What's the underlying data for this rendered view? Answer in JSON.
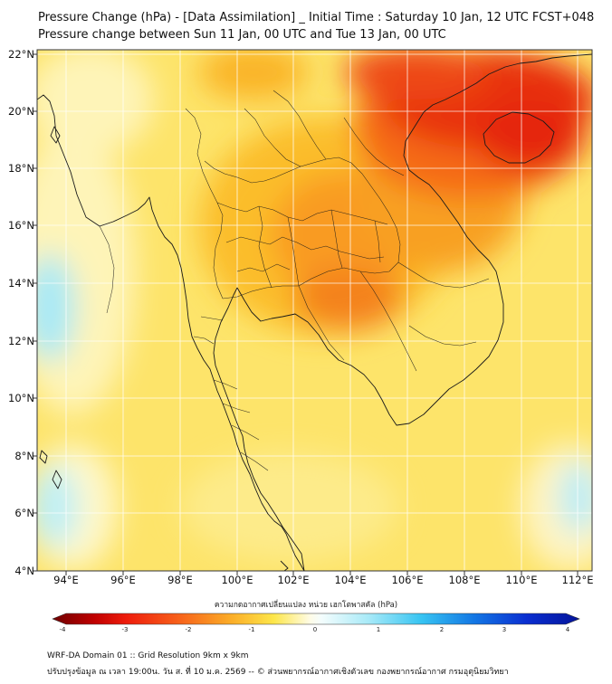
{
  "header": {
    "line1": "Pressure Change (hPa) - [Data Assimilation] _ Initial Time : Saturday 10 Jan, 12 UTC FCST+048",
    "line2": "Pressure change between Sun 11 Jan, 00 UTC and Tue 13 Jan, 00 UTC"
  },
  "map": {
    "lat_labels": [
      "22°N",
      "20°N",
      "18°N",
      "16°N",
      "14°N",
      "12°N",
      "10°N",
      "8°N",
      "6°N",
      "4°N"
    ],
    "lon_labels": [
      "94°E",
      "96°E",
      "98°E",
      "100°E",
      "102°E",
      "104°E",
      "106°E",
      "108°E",
      "110°E",
      "112°E"
    ],
    "lat_range": [
      4,
      22.2
    ],
    "lon_range": [
      93,
      112.5
    ],
    "field": "pressure change (hPa)",
    "colors": {
      "strong_fall": "#e21a0a",
      "moderate_fall": "#f77f16",
      "weak_fall": "#fbd431",
      "near_zero": "#fef8cc",
      "rise": "#a6e9f7"
    }
  },
  "colorbar": {
    "title": "ความกดอากาศเปลี่ยนแปลง หน่วย เฮกโตพาสคัล (hPa)",
    "ticks": [
      "-4",
      "-3",
      "-2",
      "-1",
      "0",
      "1",
      "2",
      "3",
      "4"
    ],
    "range": [
      -4,
      4
    ]
  },
  "footer": {
    "line1": "WRF-DA Domain 01 :: Grid Resolution 9km x 9km",
    "line2": "ปรับปรุงข้อมูล ณ เวลา 19:00น. วัน ส. ที่ 10 ม.ค. 2569 -- © ส่วนพยากรณ์อากาศเชิงตัวเลข กองพยากรณ์อากาศ กรมอุตุนิยมวิทยา"
  }
}
